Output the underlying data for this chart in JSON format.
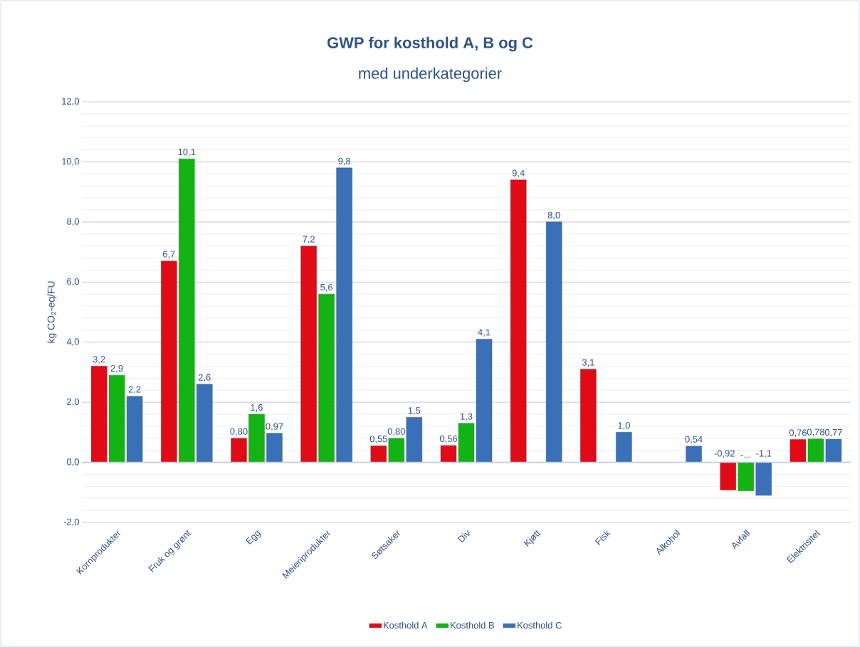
{
  "chart_data": {
    "type": "bar",
    "title": "GWP for kosthold A, B og C",
    "subtitle": "med underkategorier",
    "ylabel": "kg CO$_{2}$-eq/FU",
    "categories": [
      "Kornprodukter",
      "Fruk og grønt",
      "Egg",
      "Meieriprodukter",
      "Søtsaker",
      "Div",
      "Kjøtt",
      "Fisk",
      "Alkohol",
      "Avfall",
      "Elektrisitet"
    ],
    "series": [
      {
        "name": "Kosthold A",
        "color": "#e00b17",
        "values": [
          3.2,
          6.7,
          0.8,
          7.2,
          0.55,
          0.56,
          9.4,
          3.1,
          null,
          -0.92,
          0.76
        ],
        "value_labels": [
          "3,2",
          "6,7",
          "0,80",
          "7,2",
          "0,55",
          "0,56",
          "9,4",
          "3,1",
          null,
          "-0,92",
          "0,76"
        ]
      },
      {
        "name": "Kosthold B",
        "color": "#13b313",
        "values": [
          2.9,
          10.1,
          1.6,
          5.6,
          0.8,
          1.3,
          null,
          null,
          null,
          -0.95,
          0.78
        ],
        "value_labels": [
          "2,9",
          "10,1",
          "1,6",
          "5,6",
          "0,80",
          "1,3",
          null,
          null,
          null,
          "-...",
          "0,78"
        ]
      },
      {
        "name": "Kosthold C",
        "color": "#3a70b8",
        "values": [
          2.2,
          2.6,
          0.97,
          9.8,
          1.5,
          4.1,
          8.0,
          1.0,
          0.54,
          -1.1,
          0.77
        ],
        "value_labels": [
          "2,2",
          "2,6",
          "0,97",
          "9,8",
          "1,5",
          "4,1",
          "8,0",
          "1,0",
          "0,54",
          "-1,1",
          "0,77"
        ]
      }
    ],
    "ylim": [
      -2,
      12
    ],
    "yticks": [
      {
        "value": -2,
        "label": "-2,0"
      },
      {
        "value": 0,
        "label": "0,0"
      },
      {
        "value": 2,
        "label": "2,0"
      },
      {
        "value": 4,
        "label": "4,0"
      },
      {
        "value": 6,
        "label": "6,0"
      },
      {
        "value": 8,
        "label": "8,0"
      },
      {
        "value": 10,
        "label": "10,0"
      },
      {
        "value": 12,
        "label": "12,0"
      }
    ],
    "grid": "y",
    "legend": "bottom"
  }
}
